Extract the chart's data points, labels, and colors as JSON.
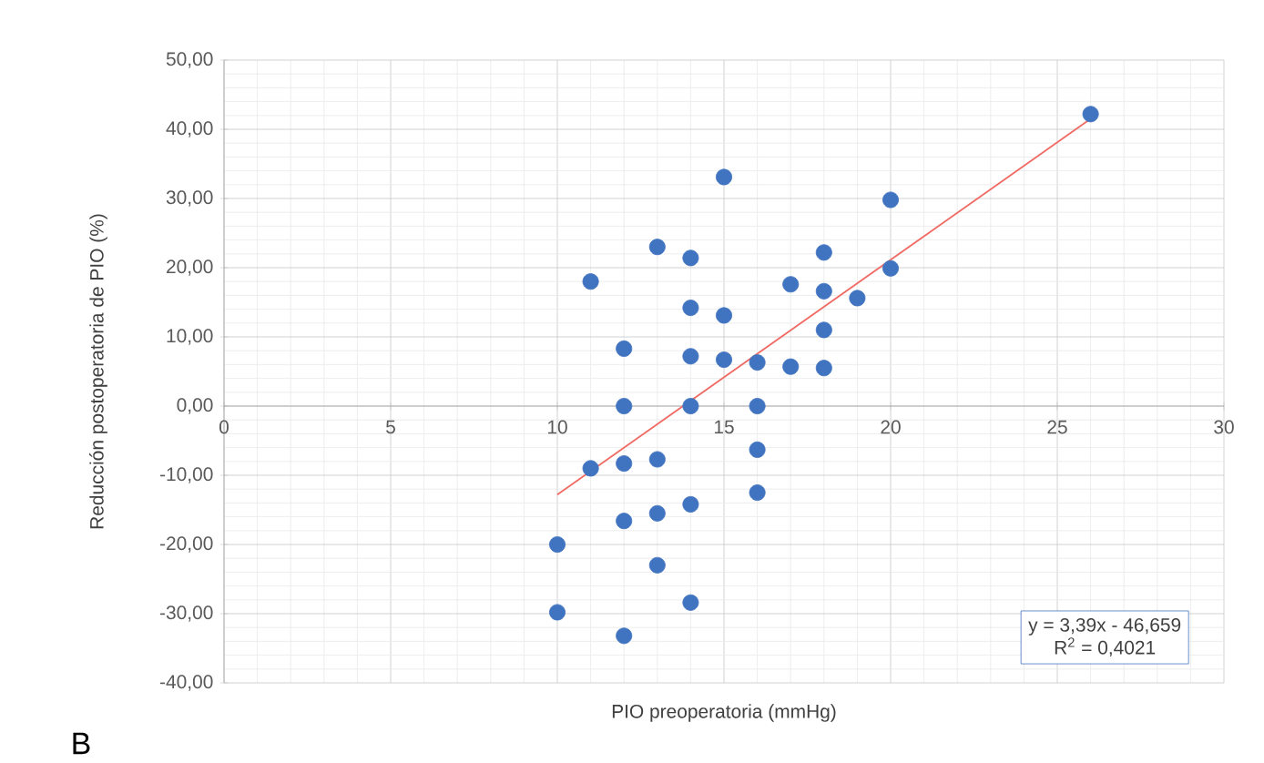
{
  "chart_data": {
    "type": "scatter",
    "xlabel": "PIO preoperatoria (mmHg)",
    "ylabel": "Reducción postoperatoria de PIO (%)",
    "xlim": [
      0,
      30
    ],
    "ylim": [
      -40,
      50
    ],
    "xticks": [
      0,
      5,
      10,
      15,
      20,
      25,
      30
    ],
    "yticks": [
      {
        "value": -40,
        "label": "-40,00"
      },
      {
        "value": -30,
        "label": "-30,00"
      },
      {
        "value": -20,
        "label": "-20,00"
      },
      {
        "value": -10,
        "label": "-10,00"
      },
      {
        "value": 0,
        "label": "0,00"
      },
      {
        "value": 10,
        "label": "10,00"
      },
      {
        "value": 20,
        "label": "20,00"
      },
      {
        "value": 30,
        "label": "30,00"
      },
      {
        "value": 40,
        "label": "40,00"
      },
      {
        "value": 50,
        "label": "50,00"
      }
    ],
    "grid": true,
    "marker": "circle",
    "series": [
      {
        "color": "#4174c0",
        "x": [
          15,
          20,
          13,
          14,
          18,
          11,
          17,
          18,
          19,
          20,
          14,
          15,
          18,
          12,
          14,
          15,
          16,
          17,
          18,
          12,
          14,
          16,
          16,
          11,
          12,
          13,
          16,
          14,
          13,
          12,
          10,
          13,
          14,
          10,
          12,
          26
        ],
        "values": [
          33.1,
          29.8,
          23.0,
          21.4,
          22.2,
          18.0,
          17.6,
          16.6,
          15.6,
          19.9,
          14.2,
          13.1,
          11.0,
          8.3,
          7.2,
          6.7,
          6.3,
          5.7,
          5.5,
          0,
          0,
          0,
          -6.3,
          -9.0,
          -8.3,
          -7.7,
          -12.5,
          -14.2,
          -15.5,
          -16.6,
          -20.0,
          -23.0,
          -28.4,
          -29.8,
          -33.2,
          42.2
        ]
      },
      {
        "type": "line",
        "color": "#f06a64",
        "marker": "none",
        "x": [
          10,
          26
        ],
        "values": [
          -12.8,
          41.5
        ]
      }
    ],
    "annotations": [
      "y = 3,39x - 46,659",
      "R$^{2}$ = 0,4021",
      "B"
    ]
  }
}
